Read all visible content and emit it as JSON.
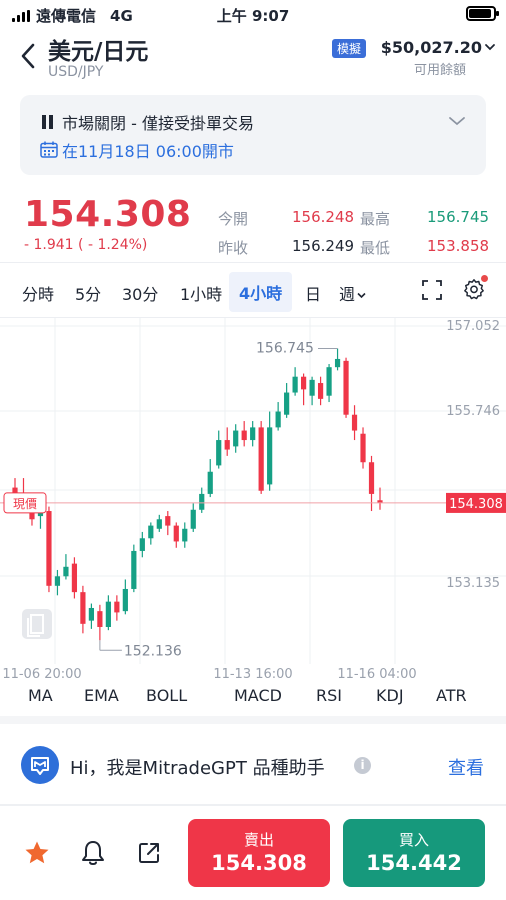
{
  "status_bar": {
    "carrier": "遠傳電信",
    "network": "4G",
    "time": "上午 9:07"
  },
  "header": {
    "title": "美元/日元",
    "subtitle": "USD/JPY",
    "mode_badge": "模擬",
    "balance": "$50,027.20",
    "balance_label": "可用餘額"
  },
  "notice": {
    "title": "市場關閉 - 僅接受掛單交易",
    "open_time": "在11月18日 06:00開市"
  },
  "quote": {
    "price": "154.308",
    "change": "- 1.941 ( - 1.24%)",
    "open_label": "今開",
    "open": "156.248",
    "high_label": "最高",
    "high": "156.745",
    "prev_close_label": "昨收",
    "prev_close": "156.249",
    "low_label": "最低",
    "low": "153.858"
  },
  "timeframes": {
    "items": [
      "分時",
      "5分",
      "30分",
      "1小時",
      "4小時",
      "日",
      "週"
    ],
    "active": "4小時"
  },
  "chart_data": {
    "type": "candlestick",
    "y_ticks": [
      "157.052",
      "155.746",
      "153.135"
    ],
    "x_ticks": [
      "11-06 20:00",
      "11-13 16:00",
      "11-16 04:00"
    ],
    "current_price_label": "現價",
    "current_price": "154.308",
    "high_marker": "156.745",
    "low_marker": "152.136",
    "ylim": [
      152.05,
      157.1
    ],
    "candles": [
      [
        154.55,
        154.45,
        154.7,
        154.38
      ],
      [
        154.45,
        154.35,
        154.7,
        154.3
      ],
      [
        154.32,
        154.05,
        154.4,
        153.95
      ],
      [
        154.1,
        154.2,
        154.3,
        153.9
      ],
      [
        154.18,
        153.0,
        154.25,
        152.9
      ],
      [
        153.0,
        153.15,
        153.25,
        152.85
      ],
      [
        153.15,
        153.3,
        153.5,
        153.1
      ],
      [
        153.35,
        152.9,
        153.45,
        152.8
      ],
      [
        152.9,
        152.4,
        153.0,
        152.25
      ],
      [
        152.45,
        152.65,
        152.72,
        152.32
      ],
      [
        152.6,
        152.35,
        152.7,
        152.14
      ],
      [
        152.35,
        152.75,
        152.85,
        152.3
      ],
      [
        152.75,
        152.58,
        152.85,
        152.45
      ],
      [
        152.6,
        152.95,
        153.1,
        152.55
      ],
      [
        152.95,
        153.55,
        153.65,
        152.9
      ],
      [
        153.55,
        153.75,
        153.85,
        153.45
      ],
      [
        153.75,
        153.95,
        154.0,
        153.65
      ],
      [
        153.9,
        154.05,
        154.12,
        153.85
      ],
      [
        154.1,
        153.95,
        154.18,
        153.8
      ],
      [
        153.95,
        153.7,
        154.0,
        153.6
      ],
      [
        153.7,
        153.9,
        154.0,
        153.6
      ],
      [
        153.9,
        154.2,
        154.3,
        153.85
      ],
      [
        154.2,
        154.45,
        154.55,
        154.15
      ],
      [
        154.45,
        154.8,
        155.0,
        154.4
      ],
      [
        154.9,
        155.3,
        155.45,
        154.85
      ],
      [
        155.3,
        155.15,
        155.5,
        155.05
      ],
      [
        155.2,
        155.45,
        155.55,
        155.1
      ],
      [
        155.45,
        155.3,
        155.6,
        155.2
      ],
      [
        155.3,
        155.5,
        155.6,
        155.2
      ],
      [
        155.5,
        154.5,
        155.6,
        154.45
      ],
      [
        154.6,
        155.5,
        155.75,
        154.5
      ],
      [
        155.5,
        155.75,
        155.9,
        155.45
      ],
      [
        155.7,
        156.05,
        156.2,
        155.65
      ],
      [
        156.05,
        156.3,
        156.45,
        156.0
      ],
      [
        156.3,
        156.1,
        156.35,
        155.85
      ],
      [
        156.0,
        156.25,
        156.3,
        155.85
      ],
      [
        156.2,
        155.95,
        156.3,
        155.85
      ],
      [
        156.0,
        156.45,
        156.5,
        155.9
      ],
      [
        156.45,
        156.58,
        156.745,
        156.4
      ],
      [
        156.55,
        155.7,
        156.6,
        155.65
      ],
      [
        155.7,
        155.45,
        155.85,
        155.3
      ],
      [
        155.4,
        154.95,
        155.5,
        154.85
      ],
      [
        154.95,
        154.45,
        155.05,
        154.18
      ],
      [
        154.35,
        154.308,
        154.55,
        154.2
      ]
    ]
  },
  "indicators": [
    "MA",
    "EMA",
    "BOLL",
    "MACD",
    "RSI",
    "KDJ",
    "ATR"
  ],
  "assistant": {
    "text": "Hi，我是MitradeGPT 品種助手",
    "link": "查看"
  },
  "actions": {
    "sell_label": "賣出",
    "sell_price": "154.308",
    "buy_label": "買入",
    "buy_price": "154.442"
  },
  "colors": {
    "up": "#16a085",
    "down": "#ef3648",
    "accent": "#2c6fde"
  }
}
